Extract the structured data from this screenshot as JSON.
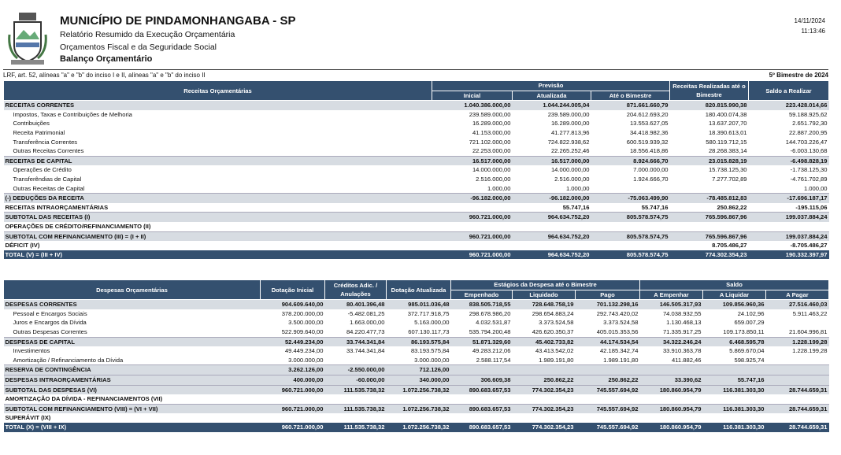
{
  "header": {
    "title": "MUNICÍPIO DE PINDAMONHANGABA - SP",
    "lines": [
      "Relatório Resumido da Execução Orçamentária",
      "Orçamentos Fiscal e da Seguridade Social"
    ],
    "subtitle": "Balanço Orçamentário",
    "date": "14/11/2024",
    "time": "11:13:46",
    "legal": "LRF, art. 52, alíneas \"a\" e \"b\" do inciso I e II, alíneas \"a\" e \"b\" do inciso II",
    "period": "5º Bimestre de 2024"
  },
  "receitas": {
    "header": {
      "label": "Receitas Orçamentárias",
      "group": "Previsão",
      "columns": [
        "Inicial",
        "Atualizada",
        "Até o Bimestre"
      ],
      "realizadas": "Receitas Realizadas até o Bimestre",
      "saldo": "Saldo a Realizar"
    },
    "rows": [
      {
        "label": "RECEITAS CORRENTES",
        "values": [
          "1.040.386.000,00",
          "1.044.244.005,04",
          "871.661.660,79",
          "820.815.990,38",
          "223.428.014,66"
        ]
      },
      {
        "label": "Impostos, Taxas e Contribuições de Melhoria",
        "values": [
          "239.589.000,00",
          "239.589.000,00",
          "204.612.693,20",
          "180.400.074,38",
          "59.188.925,62"
        ]
      },
      {
        "label": "Contribuições",
        "values": [
          "16.289.000,00",
          "16.289.000,00",
          "13.553.627,05",
          "13.637.207,70",
          "2.651.792,30"
        ]
      },
      {
        "label": "Receita Patrimonial",
        "values": [
          "41.153.000,00",
          "41.277.813,96",
          "34.418.982,36",
          "18.390.613,01",
          "22.887.200,95"
        ]
      },
      {
        "label": "Transferência Correntes",
        "values": [
          "721.102.000,00",
          "724.822.938,62",
          "600.519.939,32",
          "580.119.712,15",
          "144.703.226,47"
        ]
      },
      {
        "label": "Outras Receitas Correntes",
        "values": [
          "22.253.000,00",
          "22.265.252,46",
          "18.556.418,86",
          "28.268.383,14",
          "-6.003.130,68"
        ]
      },
      {
        "label": "RECEITAS DE CAPITAL",
        "values": [
          "16.517.000,00",
          "16.517.000,00",
          "8.924.666,70",
          "23.015.828,19",
          "-6.498.828,19"
        ]
      },
      {
        "label": "Operações de Crédito",
        "values": [
          "14.000.000,00",
          "14.000.000,00",
          "7.000.000,00",
          "15.738.125,30",
          "-1.738.125,30"
        ]
      },
      {
        "label": "Transferêndias de Capital",
        "values": [
          "2.516.000,00",
          "2.516.000,00",
          "1.924.666,70",
          "7.277.702,89",
          "-4.761.702,89"
        ]
      },
      {
        "label": "Outras Receitas de Capital",
        "values": [
          "1.000,00",
          "1.000,00",
          null,
          null,
          "1.000,00"
        ]
      },
      {
        "label": "(-) DEDUÇÕES DA RECEITA",
        "values": [
          "-96.182.000,00",
          "-96.182.000,00",
          "-75.063.499,90",
          "-78.485.812,83",
          "-17.696.187,17"
        ]
      },
      {
        "label": "RECEITAS INTRAORÇAMENTÁRIAS",
        "values": [
          null,
          "55.747,16",
          "55.747,16",
          "250.862,22",
          "-195.115,06"
        ]
      },
      {
        "label": "SUBTOTAL DAS RECEITAS (I)",
        "values": [
          "960.721.000,00",
          "964.634.752,20",
          "805.578.574,75",
          "765.596.867,96",
          "199.037.884,24"
        ]
      },
      {
        "label": "OPERAÇÕES DE CRÉDITO/REFINANCIAMENTO (II)",
        "values": [
          null,
          null,
          null,
          null,
          null
        ]
      },
      {
        "label": "SUBTOTAL COM REFINANCIAMENTO (III) = (I + II)",
        "values": [
          "960.721.000,00",
          "964.634.752,20",
          "805.578.574,75",
          "765.596.867,96",
          "199.037.884,24"
        ]
      },
      {
        "label": "DÉFICIT (IV)",
        "values": [
          null,
          null,
          null,
          "8.705.486,27",
          "-8.705.486,27"
        ]
      },
      {
        "label": "TOTAL (V) = (III + IV)",
        "values": [
          "960.721.000,00",
          "964.634.752,20",
          "805.578.574,75",
          "774.302.354,23",
          "190.332.397,97"
        ]
      }
    ]
  },
  "despesas": {
    "header": {
      "label": "Despesas Orçamentárias",
      "dotacao_inicial": "Dotação Inicial",
      "creditos": "Créditos Adic. / Anulações",
      "dotacao_atualizada": "Dotação Atualizada",
      "estagios": "Estágios da Despesa até o Bimestre",
      "estagios_columns": [
        "Empenhado",
        "Liquidado",
        "Pago"
      ],
      "saldo": "Saldo",
      "saldo_columns": [
        "A Empenhar",
        "A Liquidar",
        "A Pagar"
      ]
    },
    "rows": [
      {
        "label": "DESPESAS CORRENTES",
        "values": [
          "904.609.640,00",
          "80.401.396,48",
          "985.011.036,48",
          "838.505.718,55",
          "728.648.758,19",
          "701.132.298,16",
          "146.505.317,93",
          "109.856.960,36",
          "27.516.460,03"
        ]
      },
      {
        "label": "Pessoal e Encargos Sociais",
        "values": [
          "378.200.000,00",
          "-5.482.081,25",
          "372.717.918,75",
          "298.678.986,20",
          "298.654.883,24",
          "292.743.420,02",
          "74.038.932,55",
          "24.102,96",
          "5.911.463,22"
        ]
      },
      {
        "label": "Juros e Encargos da Dívida",
        "values": [
          "3.500.000,00",
          "1.663.000,00",
          "5.163.000,00",
          "4.032.531,87",
          "3.373.524,58",
          "3.373.524,58",
          "1.130.468,13",
          "659.007,29",
          null
        ]
      },
      {
        "label": "Outras Despesas Correntes",
        "values": [
          "522.909.640,00",
          "84.220.477,73",
          "607.130.117,73",
          "535.794.200,48",
          "426.620.350,37",
          "405.015.353,56",
          "71.335.917,25",
          "109.173.850,11",
          "21.604.996,81"
        ]
      },
      {
        "label": "DESPESAS DE CAPITAL",
        "values": [
          "52.449.234,00",
          "33.744.341,84",
          "86.193.575,84",
          "51.871.329,60",
          "45.402.733,82",
          "44.174.534,54",
          "34.322.246,24",
          "6.468.595,78",
          "1.228.199,28"
        ]
      },
      {
        "label": "Investimentos",
        "values": [
          "49.449.234,00",
          "33.744.341,84",
          "83.193.575,84",
          "49.283.212,06",
          "43.413.542,02",
          "42.185.342,74",
          "33.910.363,78",
          "5.869.670,04",
          "1.228.199,28"
        ]
      },
      {
        "label": "Amortização / Refinanciamento da Dívida",
        "values": [
          "3.000.000,00",
          null,
          "3.000.000,00",
          "2.588.117,54",
          "1.989.191,80",
          "1.989.191,80",
          "411.882,46",
          "598.925,74",
          null
        ]
      },
      {
        "label": "RESERVA DE CONTINGÊNCIA",
        "values": [
          "3.262.126,00",
          "-2.550.000,00",
          "712.126,00",
          null,
          null,
          null,
          null,
          null,
          null
        ]
      },
      {
        "label": "DESPESAS INTRAORÇAMENTÁRIAS",
        "values": [
          "400.000,00",
          "-60.000,00",
          "340.000,00",
          "306.609,38",
          "250.862,22",
          "250.862,22",
          "33.390,62",
          "55.747,16",
          null
        ]
      },
      {
        "label": "SUBTOTAL DAS DESPESAS (VI)",
        "values": [
          "960.721.000,00",
          "111.535.738,32",
          "1.072.256.738,32",
          "890.683.657,53",
          "774.302.354,23",
          "745.557.694,92",
          "180.860.954,79",
          "116.381.303,30",
          "28.744.659,31"
        ]
      },
      {
        "label": "AMORTIZAÇÃO DA DÍVIDA - REFINANCIAMENTOS (VII)",
        "values": [
          null,
          null,
          null,
          null,
          null,
          null,
          null,
          null,
          null
        ]
      },
      {
        "label": "SUBTOTAL COM REFINANCIAMENTO (VIII) = (VI + VII)",
        "values": [
          "960.721.000,00",
          "111.535.738,32",
          "1.072.256.738,32",
          "890.683.657,53",
          "774.302.354,23",
          "745.557.694,92",
          "180.860.954,79",
          "116.381.303,30",
          "28.744.659,31"
        ]
      },
      {
        "label": "SUPERÁVIT (IX)",
        "values": [
          null,
          null,
          null,
          null,
          null,
          null,
          null,
          null,
          null
        ]
      },
      {
        "label": "TOTAL (X) = (VIII + IX)",
        "values": [
          "960.721.000,00",
          "111.535.738,32",
          "1.072.256.738,32",
          "890.683.657,53",
          "774.302.354,23",
          "745.557.694,92",
          "180.860.954,79",
          "116.381.303,30",
          "28.744.659,31"
        ]
      }
    ]
  }
}
